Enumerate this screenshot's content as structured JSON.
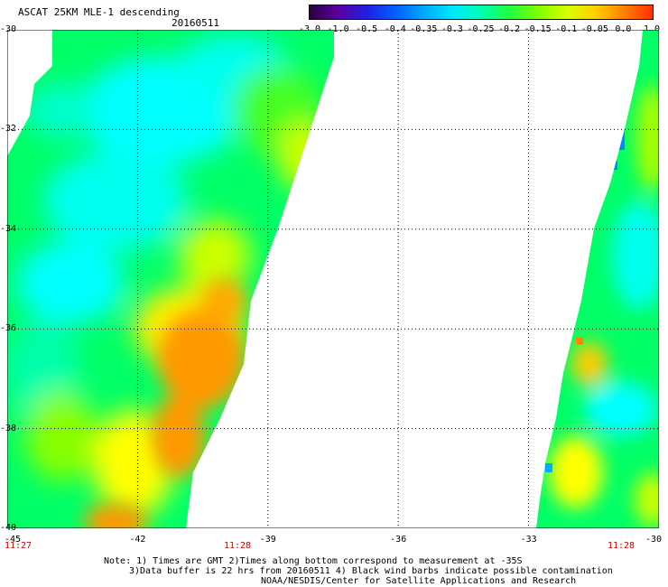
{
  "header": {
    "title": "ASCAT 25KM MLE-1 descending",
    "date": "20160511"
  },
  "colorbar": {
    "labels": [
      "-3.0",
      "-1.0",
      "-0.5",
      "-0.4",
      "-0.35",
      "-0.3",
      "-0.25",
      "-0.2",
      "-0.15",
      "-0.1",
      "-0.05",
      "0.0",
      "1.0"
    ],
    "colors": [
      "#2a0040",
      "#5a00a0",
      "#2020e0",
      "#0060ff",
      "#00a8ff",
      "#00e8ff",
      "#00ffb0",
      "#20ff40",
      "#80ff00",
      "#d8ff00",
      "#ffd000",
      "#ff8000",
      "#ff3000"
    ]
  },
  "map": {
    "lat_labels": [
      "-30",
      "-32",
      "-34",
      "-36",
      "-38",
      "-40"
    ],
    "lon_labels": [
      "-45",
      "-42",
      "-39",
      "-36",
      "-33",
      "-30"
    ],
    "time_labels": [
      "11:27",
      "11:28",
      "11:28"
    ],
    "lat_range": [
      -40,
      -30
    ],
    "lon_range": [
      -45,
      -30
    ],
    "value_colors": {
      "low": "#00ffff",
      "mid": "#00ff40",
      "high": "#ffff00",
      "peak": "#ff9900",
      "extreme": "#0055ff"
    }
  },
  "notes": {
    "line1": "Note: 1) Times are GMT 2)Times along bottom correspond to measurement at -35S",
    "line2": "3)Data buffer is 22 hrs from 20160511 4) Black wind barbs indicate possible contamination",
    "line3": "NOAA/NESDIS/Center for Satellite Applications and Research"
  }
}
